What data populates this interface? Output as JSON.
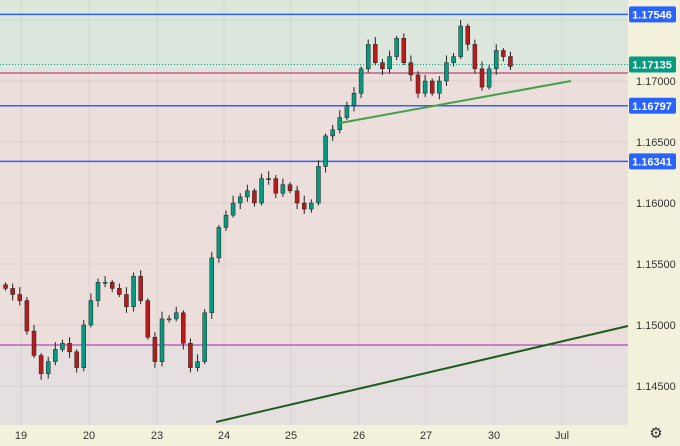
{
  "chart_data": {
    "type": "candlestick",
    "title": "",
    "x_tick_labels": [
      "19",
      "20",
      "23",
      "24",
      "25",
      "26",
      "27",
      "30",
      "Jul"
    ],
    "y_tick_labels": [
      "1.17000",
      "1.16500",
      "1.16000",
      "1.15500",
      "1.15000",
      "1.14500"
    ],
    "ylim": [
      1.1422,
      1.1766
    ],
    "grid": true,
    "closes": [
      1.153,
      1.1525,
      1.152,
      1.1495,
      1.1475,
      1.146,
      1.147,
      1.148,
      1.1485,
      1.1478,
      1.1465,
      1.15,
      1.152,
      1.1535,
      1.1535,
      1.153,
      1.1525,
      1.1515,
      1.154,
      1.152,
      1.149,
      1.147,
      1.1505,
      1.1505,
      1.151,
      1.1485,
      1.1465,
      1.147,
      1.151,
      1.1555,
      1.158,
      1.159,
      1.16,
      1.1605,
      1.161,
      1.16,
      1.162,
      1.162,
      1.1608,
      1.1615,
      1.161,
      1.16,
      1.1595,
      1.16,
      1.163,
      1.1655,
      1.166,
      1.167,
      1.168,
      1.169,
      1.171,
      1.173,
      1.1715,
      1.171,
      1.172,
      1.1735,
      1.1715,
      1.1705,
      1.169,
      1.17,
      1.169,
      1.17,
      1.1715,
      1.172,
      1.1745,
      1.173,
      1.171,
      1.1695,
      1.171,
      1.1725,
      1.172,
      1.1712
    ],
    "horizontal_levels": [
      {
        "label": "1.17546",
        "price": 1.17546,
        "color": "#2962ff"
      },
      {
        "label": "1.16797",
        "price": 1.16797,
        "color": "#2962ff"
      },
      {
        "label": "1.16341",
        "price": 1.16341,
        "color": "#2962ff"
      }
    ],
    "current_price": {
      "label": "1.17135",
      "price": 1.17135,
      "color": "#089981"
    },
    "zone_lines": [
      {
        "price": 1.17066,
        "color": "#c2185b"
      },
      {
        "price": 1.14836,
        "color": "#9c27b0"
      }
    ],
    "trend_lines": [
      {
        "start_price": 1.16656,
        "end_price": 1.17,
        "color": "#43a047"
      },
      {
        "start_price": 1.14205,
        "end_price": 1.14992,
        "color": "#1b5e20"
      }
    ],
    "colors": {
      "up": "#089981",
      "down": "#b71c1c",
      "zone_top": "#dde6dc",
      "zone_mid": "#ecdeda",
      "zone_low": "#e6dfe0",
      "axis_bg": "#f3f0dc"
    }
  },
  "settings_icon": "gear-icon"
}
